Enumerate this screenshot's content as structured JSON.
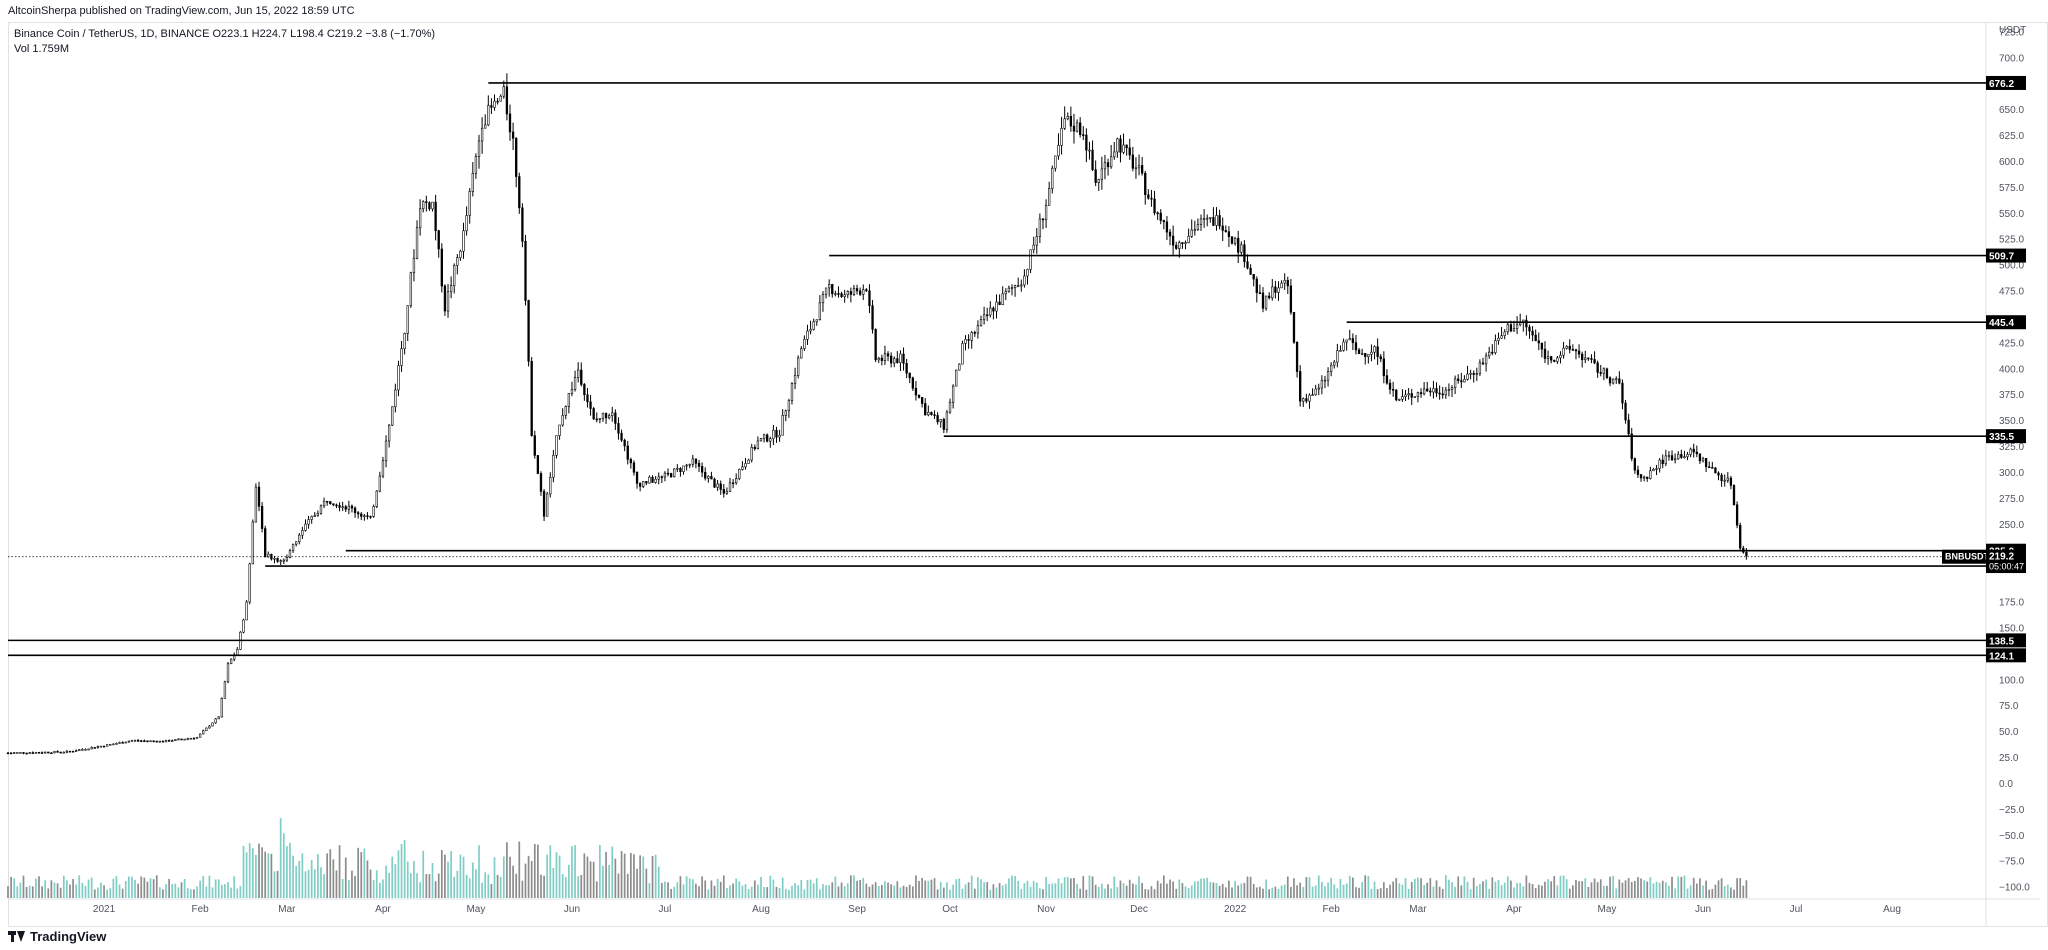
{
  "publisher_line": "AltcoinSherpa published on TradingView.com, Jun 15, 2022 18:59 UTC",
  "symbol_line": "Binance Coin / TetherUS, 1D, BINANCE  O223.1  H224.7  L198.4  C219.2  −3.8 (−1.70%)",
  "volume_line": "Vol  1.759M",
  "footer": {
    "brand": "TradingView",
    "icon": "tradingview-logo-icon"
  },
  "currency_label": "USDT",
  "symbol_tag": "BNBUSDT",
  "countdown": "05:00:47",
  "colors": {
    "candle": "#000000",
    "volume_up": "#7fcdc4",
    "volume_down": "#8c8c8c",
    "tag_bg": "#000000",
    "grid": "#e0e3eb"
  },
  "chart_data": {
    "type": "candlestick",
    "title": "Binance Coin / TetherUS, 1D, BINANCE",
    "x_range": [
      "2020-12-01",
      "2022-08-31"
    ],
    "ylim": [
      -110,
      735
    ],
    "y_ticks": [
      "725.0",
      "700.0",
      "650.0",
      "625.0",
      "600.0",
      "575.0",
      "550.0",
      "525.0",
      "500.0",
      "475.0",
      "425.0",
      "400.0",
      "375.0",
      "350.0",
      "325.0",
      "300.0",
      "275.0",
      "250.0",
      "175.0",
      "150.0",
      "100.0",
      "75.0",
      "50.0",
      "25.0",
      "0.0",
      "−25.0",
      "−50.0",
      "−75.0",
      "−100.0"
    ],
    "x_ticks": [
      {
        "label": "2021",
        "date": "2021-01-01"
      },
      {
        "label": "Feb",
        "date": "2021-02-01"
      },
      {
        "label": "Mar",
        "date": "2021-03-01"
      },
      {
        "label": "Apr",
        "date": "2021-04-01"
      },
      {
        "label": "May",
        "date": "2021-05-01"
      },
      {
        "label": "Jun",
        "date": "2021-06-01"
      },
      {
        "label": "Jul",
        "date": "2021-07-01"
      },
      {
        "label": "Aug",
        "date": "2021-08-01"
      },
      {
        "label": "Sep",
        "date": "2021-09-01"
      },
      {
        "label": "Oct",
        "date": "2021-10-01"
      },
      {
        "label": "Nov",
        "date": "2021-11-01"
      },
      {
        "label": "Dec",
        "date": "2021-12-01"
      },
      {
        "label": "2022",
        "date": "2022-01-01"
      },
      {
        "label": "Feb",
        "date": "2022-02-01"
      },
      {
        "label": "Mar",
        "date": "2022-03-01"
      },
      {
        "label": "Apr",
        "date": "2022-04-01"
      },
      {
        "label": "May",
        "date": "2022-05-01"
      },
      {
        "label": "Jun",
        "date": "2022-06-01"
      },
      {
        "label": "Jul",
        "date": "2022-07-01"
      },
      {
        "label": "Aug",
        "date": "2022-08-01"
      }
    ],
    "last_price": 219.2,
    "price_path": [
      [
        "2020-12-01",
        30
      ],
      [
        "2020-12-20",
        31
      ],
      [
        "2021-01-01",
        37
      ],
      [
        "2021-01-10",
        42
      ],
      [
        "2021-01-20",
        41
      ],
      [
        "2021-01-31",
        45
      ],
      [
        "2021-02-07",
        65
      ],
      [
        "2021-02-10",
        115
      ],
      [
        "2021-02-13",
        130
      ],
      [
        "2021-02-16",
        175
      ],
      [
        "2021-02-19",
        290
      ],
      [
        "2021-02-22",
        220
      ],
      [
        "2021-02-28",
        215
      ],
      [
        "2021-03-06",
        245
      ],
      [
        "2021-03-14",
        275
      ],
      [
        "2021-03-22",
        265
      ],
      [
        "2021-03-28",
        255
      ],
      [
        "2021-04-03",
        345
      ],
      [
        "2021-04-08",
        440
      ],
      [
        "2021-04-13",
        560
      ],
      [
        "2021-04-17",
        560
      ],
      [
        "2021-04-21",
        460
      ],
      [
        "2021-04-27",
        530
      ],
      [
        "2021-05-03",
        640
      ],
      [
        "2021-05-10",
        665
      ],
      [
        "2021-05-13",
        620
      ],
      [
        "2021-05-16",
        530
      ],
      [
        "2021-05-19",
        340
      ],
      [
        "2021-05-23",
        260
      ],
      [
        "2021-05-28",
        350
      ],
      [
        "2021-06-03",
        400
      ],
      [
        "2021-06-08",
        350
      ],
      [
        "2021-06-14",
        360
      ],
      [
        "2021-06-22",
        290
      ],
      [
        "2021-06-30",
        295
      ],
      [
        "2021-07-10",
        310
      ],
      [
        "2021-07-20",
        280
      ],
      [
        "2021-07-31",
        330
      ],
      [
        "2021-08-07",
        340
      ],
      [
        "2021-08-14",
        420
      ],
      [
        "2021-08-23",
        480
      ],
      [
        "2021-08-28",
        470
      ],
      [
        "2021-09-04",
        480
      ],
      [
        "2021-09-07",
        410
      ],
      [
        "2021-09-15",
        410
      ],
      [
        "2021-09-23",
        360
      ],
      [
        "2021-09-29",
        345
      ],
      [
        "2021-10-05",
        420
      ],
      [
        "2021-10-15",
        460
      ],
      [
        "2021-10-25",
        490
      ],
      [
        "2021-11-01",
        560
      ],
      [
        "2021-11-07",
        640
      ],
      [
        "2021-11-13",
        630
      ],
      [
        "2021-11-17",
        580
      ],
      [
        "2021-11-24",
        620
      ],
      [
        "2021-12-01",
        590
      ],
      [
        "2021-12-05",
        560
      ],
      [
        "2021-12-13",
        520
      ],
      [
        "2021-12-20",
        540
      ],
      [
        "2021-12-27",
        545
      ],
      [
        "2022-01-04",
        510
      ],
      [
        "2022-01-10",
        460
      ],
      [
        "2022-01-14",
        480
      ],
      [
        "2022-01-18",
        480
      ],
      [
        "2022-01-22",
        370
      ],
      [
        "2022-01-28",
        380
      ],
      [
        "2022-02-06",
        430
      ],
      [
        "2022-02-10",
        415
      ],
      [
        "2022-02-15",
        420
      ],
      [
        "2022-02-22",
        370
      ],
      [
        "2022-03-03",
        380
      ],
      [
        "2022-03-10",
        380
      ],
      [
        "2022-03-20",
        400
      ],
      [
        "2022-03-30",
        440
      ],
      [
        "2022-04-04",
        445
      ],
      [
        "2022-04-12",
        410
      ],
      [
        "2022-04-20",
        420
      ],
      [
        "2022-04-28",
        400
      ],
      [
        "2022-05-05",
        385
      ],
      [
        "2022-05-10",
        300
      ],
      [
        "2022-05-13",
        295
      ],
      [
        "2022-05-20",
        315
      ],
      [
        "2022-05-29",
        320
      ],
      [
        "2022-06-05",
        300
      ],
      [
        "2022-06-10",
        290
      ],
      [
        "2022-06-13",
        230
      ],
      [
        "2022-06-15",
        219.2
      ]
    ],
    "levels": [
      {
        "label": "676.2",
        "value": 676.2,
        "start": "2021-05-05"
      },
      {
        "label": "509.7",
        "value": 509.7,
        "start": "2021-08-23"
      },
      {
        "label": "445.4",
        "value": 445.4,
        "start": "2022-02-06"
      },
      {
        "label": "335.5",
        "value": 335.5,
        "start": "2021-09-29"
      },
      {
        "label": "225.0",
        "value": 225.0,
        "start": "2021-03-20"
      },
      {
        "label": "210.2",
        "value": 210.2,
        "start": "2021-02-22"
      },
      {
        "label": "138.5",
        "value": 138.5,
        "start": "2020-12-01"
      },
      {
        "label": "124.1",
        "value": 124.1,
        "start": "2020-12-01"
      }
    ],
    "volume": {
      "label": "Vol",
      "last": "1.759M",
      "ylim": [
        0,
        1
      ]
    }
  }
}
